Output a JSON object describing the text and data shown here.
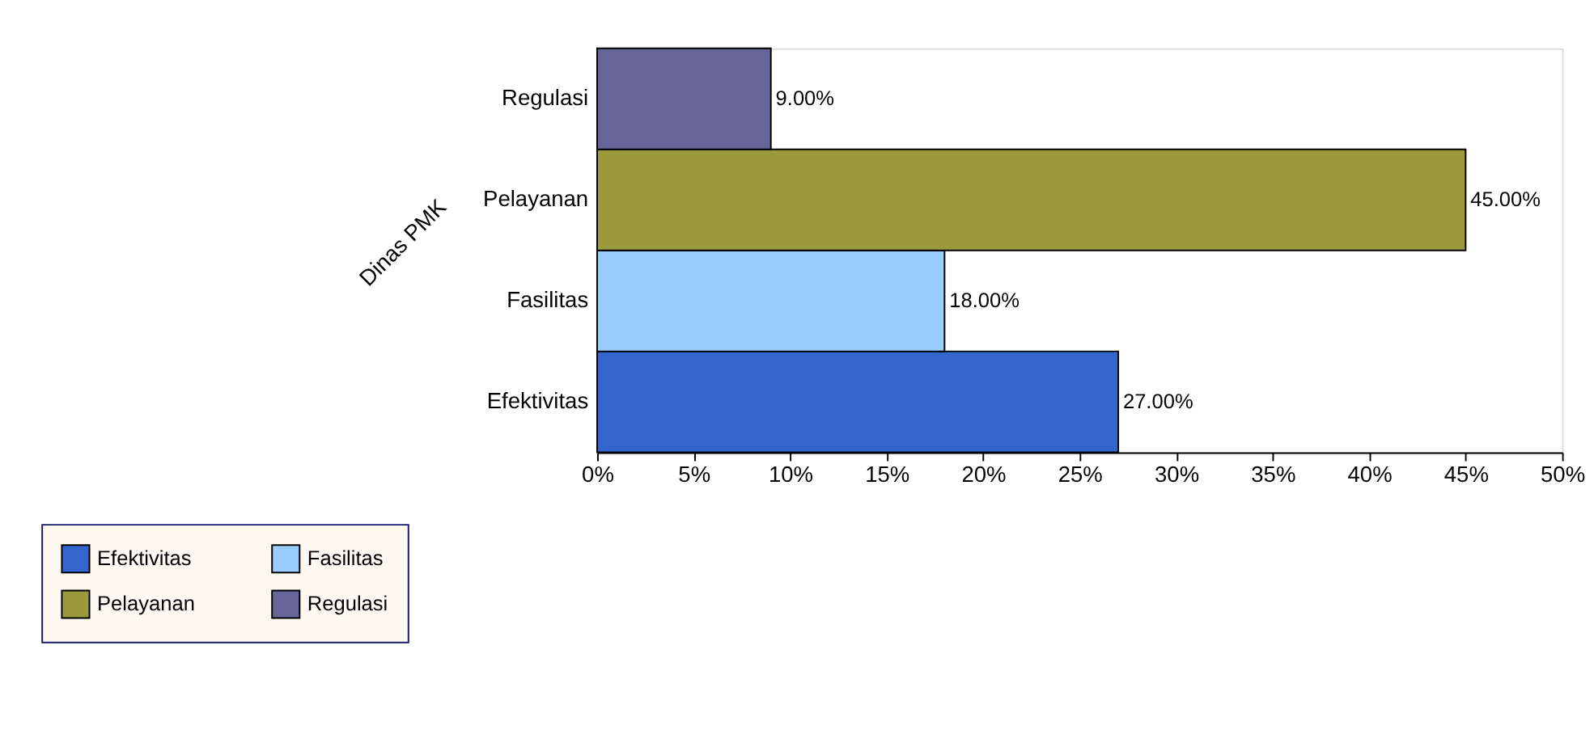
{
  "chart_data": {
    "type": "bar",
    "orientation": "horizontal",
    "grid": false,
    "ylabel": "Dinas PMK",
    "categories": [
      "Regulasi",
      "Pelayanan",
      "Fasilitas",
      "Efektivitas"
    ],
    "series": [
      {
        "name": "Efektivitas",
        "color": "#3366cc",
        "values": [
          null,
          null,
          null,
          27
        ],
        "value_labels": [
          null,
          null,
          null,
          "27.00%"
        ]
      },
      {
        "name": "Fasilitas",
        "color": "#99ccff",
        "values": [
          null,
          null,
          18,
          null
        ],
        "value_labels": [
          null,
          null,
          "18.00%",
          null
        ]
      },
      {
        "name": "Pelayanan",
        "color": "#9a9a3a",
        "values": [
          null,
          45,
          null,
          null
        ],
        "value_labels": [
          null,
          "45.00%",
          null,
          null
        ]
      },
      {
        "name": "Regulasi",
        "color": "#67669a",
        "values": [
          9,
          null,
          null,
          null
        ],
        "value_labels": [
          "9.00%",
          null,
          null,
          null
        ]
      }
    ],
    "xlim": [
      0,
      50
    ],
    "xticks": [
      {
        "value": 0,
        "label": "0%"
      },
      {
        "value": 5,
        "label": "5%"
      },
      {
        "value": 10,
        "label": "10%"
      },
      {
        "value": 15,
        "label": "15%"
      },
      {
        "value": 20,
        "label": "20%"
      },
      {
        "value": 25,
        "label": "25%"
      },
      {
        "value": 30,
        "label": "30%"
      },
      {
        "value": 35,
        "label": "35%"
      },
      {
        "value": 40,
        "label": "40%"
      },
      {
        "value": 45,
        "label": "45%"
      },
      {
        "value": 50,
        "label": "50%"
      }
    ],
    "legend": "bottom"
  }
}
